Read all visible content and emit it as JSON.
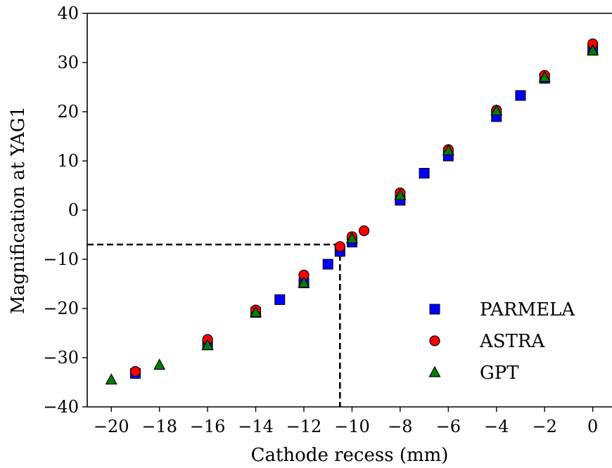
{
  "chart_data": {
    "type": "scatter",
    "xlabel": "Cathode recess (mm)",
    "ylabel": "Magnification at YAG1",
    "xlim": [
      -21,
      0.8
    ],
    "ylim": [
      -40,
      40
    ],
    "xticks": [
      -20,
      -18,
      -16,
      -14,
      -12,
      -10,
      -8,
      -6,
      -4,
      -2,
      0
    ],
    "yticks": [
      -40,
      -30,
      -20,
      -10,
      0,
      10,
      20,
      30,
      40
    ],
    "xtick_labels": [
      "−20",
      "−18",
      "−16",
      "−14",
      "−12",
      "−10",
      "−8",
      "−6",
      "−4",
      "−2",
      "0"
    ],
    "ytick_labels": [
      "−40",
      "−30",
      "−20",
      "−10",
      "0",
      "10",
      "20",
      "30",
      "40"
    ],
    "legend_position": "lower-right",
    "reference_lines": {
      "x": -10.5,
      "y": -7,
      "style": "dashed"
    },
    "series": [
      {
        "name": "PARMELA",
        "marker": "square",
        "color": "#0000ff",
        "points": [
          [
            -19,
            -33.2
          ],
          [
            -16,
            -27.4
          ],
          [
            -14,
            -20.8
          ],
          [
            -13,
            -18.2
          ],
          [
            -12,
            -14.8
          ],
          [
            -11,
            -11
          ],
          [
            -10.5,
            -8.4
          ],
          [
            -10,
            -6.5
          ],
          [
            -8,
            2
          ],
          [
            -7,
            7.5
          ],
          [
            -6,
            11
          ],
          [
            -4,
            19
          ],
          [
            -3,
            23.3
          ],
          [
            -2,
            26.8
          ],
          [
            0,
            32.5
          ]
        ]
      },
      {
        "name": "ASTRA",
        "marker": "circle",
        "color": "#ff0000",
        "points": [
          [
            -19,
            -32.8
          ],
          [
            -16,
            -26.3
          ],
          [
            -14,
            -20.3
          ],
          [
            -12,
            -13.2
          ],
          [
            -10.5,
            -7.4
          ],
          [
            -10,
            -5.4
          ],
          [
            -9.5,
            -4.2
          ],
          [
            -8,
            3.5
          ],
          [
            -6,
            12.3
          ],
          [
            -4,
            20.3
          ],
          [
            -2,
            27.4
          ],
          [
            0,
            33.8
          ]
        ]
      },
      {
        "name": "GPT",
        "marker": "triangle",
        "color": "#008000",
        "points": [
          [
            -20,
            -34.5
          ],
          [
            -18,
            -31.5
          ],
          [
            -16,
            -27.5
          ],
          [
            -14,
            -20.8
          ],
          [
            -12,
            -14.8
          ],
          [
            -10,
            -5.8
          ],
          [
            -8,
            3
          ],
          [
            -6,
            12.1
          ],
          [
            -4,
            20.2
          ],
          [
            -2,
            27
          ],
          [
            0,
            32.4
          ]
        ]
      }
    ]
  }
}
